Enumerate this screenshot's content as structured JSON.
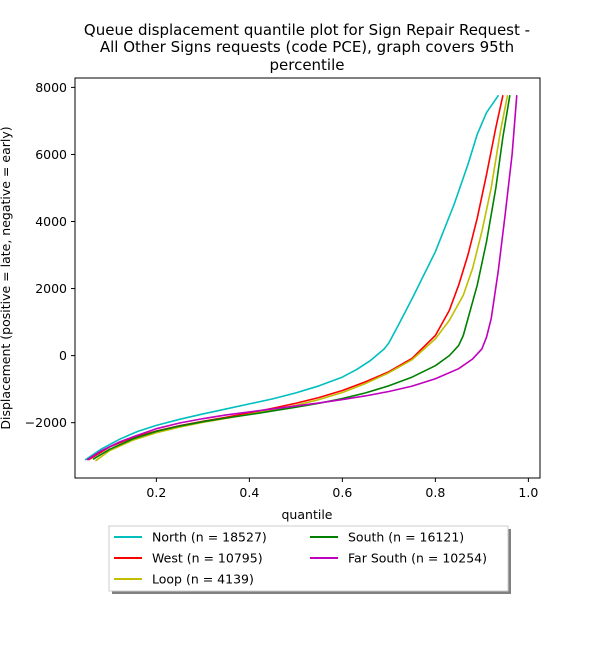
{
  "chart_data": {
    "type": "line",
    "title": [
      "Queue displacement quantile plot for Sign Repair Request -",
      "All Other Signs  requests (code PCE), graph covers 95th",
      "percentile"
    ],
    "xlabel": "quantile",
    "ylabel": "Displacement (positive = late, negative = early)",
    "xlim": [
      0.025,
      1.025
    ],
    "ylim": [
      -3650,
      8280
    ],
    "xticks": [
      0.2,
      0.4,
      0.6,
      0.8,
      1.0
    ],
    "xtick_labels": [
      "0.2",
      "0.4",
      "0.6",
      "0.8",
      "1.0"
    ],
    "yticks": [
      -2000,
      0,
      2000,
      4000,
      6000,
      8000
    ],
    "ytick_labels": [
      "−2000",
      "0",
      "2000",
      "4000",
      "6000",
      "8000"
    ],
    "grid": false,
    "legend_position": "below",
    "series": [
      {
        "name": "North (n = 18527)",
        "color": "#00bfbf",
        "x": [
          0.048,
          0.08,
          0.12,
          0.16,
          0.2,
          0.25,
          0.3,
          0.35,
          0.4,
          0.45,
          0.5,
          0.55,
          0.6,
          0.63,
          0.66,
          0.69,
          0.7,
          0.72,
          0.75,
          0.8,
          0.84,
          0.87,
          0.89,
          0.91,
          0.935
        ],
        "y": [
          -3100,
          -2800,
          -2500,
          -2260,
          -2080,
          -1900,
          -1740,
          -1590,
          -1440,
          -1290,
          -1110,
          -900,
          -640,
          -420,
          -150,
          200,
          380,
          900,
          1700,
          3100,
          4500,
          5700,
          6600,
          7250,
          7750
        ]
      },
      {
        "name": "West (n = 10795)",
        "color": "#ff0000",
        "x": [
          0.055,
          0.1,
          0.15,
          0.2,
          0.25,
          0.3,
          0.35,
          0.4,
          0.45,
          0.5,
          0.55,
          0.6,
          0.65,
          0.7,
          0.75,
          0.8,
          0.83,
          0.85,
          0.87,
          0.89,
          0.91,
          0.93,
          0.945
        ],
        "y": [
          -3100,
          -2720,
          -2440,
          -2250,
          -2090,
          -1960,
          -1840,
          -1710,
          -1570,
          -1420,
          -1250,
          -1040,
          -780,
          -480,
          -80,
          600,
          1350,
          2100,
          3000,
          4100,
          5400,
          6800,
          7750
        ]
      },
      {
        "name": "Loop (n = 4139)",
        "color": "#bfbf00",
        "x": [
          0.07,
          0.1,
          0.15,
          0.2,
          0.25,
          0.3,
          0.35,
          0.4,
          0.45,
          0.5,
          0.55,
          0.6,
          0.65,
          0.7,
          0.75,
          0.8,
          0.83,
          0.86,
          0.88,
          0.9,
          0.92,
          0.94,
          0.955
        ],
        "y": [
          -3130,
          -2830,
          -2520,
          -2300,
          -2130,
          -1990,
          -1870,
          -1750,
          -1620,
          -1480,
          -1310,
          -1100,
          -830,
          -510,
          -120,
          500,
          1050,
          1800,
          2600,
          3700,
          5000,
          6700,
          7750
        ]
      },
      {
        "name": "South (n = 16121)",
        "color": "#008000",
        "x": [
          0.065,
          0.1,
          0.15,
          0.2,
          0.25,
          0.3,
          0.35,
          0.4,
          0.45,
          0.5,
          0.55,
          0.6,
          0.65,
          0.7,
          0.75,
          0.8,
          0.83,
          0.85,
          0.86,
          0.87,
          0.89,
          0.91,
          0.93,
          0.945,
          0.96
        ],
        "y": [
          -3080,
          -2790,
          -2480,
          -2260,
          -2100,
          -1970,
          -1860,
          -1760,
          -1650,
          -1540,
          -1420,
          -1280,
          -1110,
          -900,
          -640,
          -300,
          0,
          300,
          600,
          1100,
          2100,
          3400,
          5000,
          6500,
          7750
        ]
      },
      {
        "name": "Far South (n = 10254)",
        "color": "#bf00bf",
        "x": [
          0.052,
          0.08,
          0.12,
          0.16,
          0.2,
          0.25,
          0.3,
          0.35,
          0.4,
          0.45,
          0.5,
          0.55,
          0.6,
          0.65,
          0.7,
          0.75,
          0.8,
          0.85,
          0.88,
          0.9,
          0.91,
          0.92,
          0.935,
          0.95,
          0.965,
          0.975
        ],
        "y": [
          -3100,
          -2850,
          -2580,
          -2370,
          -2180,
          -2010,
          -1880,
          -1770,
          -1680,
          -1590,
          -1500,
          -1410,
          -1310,
          -1200,
          -1070,
          -910,
          -690,
          -390,
          -100,
          200,
          550,
          1100,
          2500,
          4200,
          6000,
          7750
        ]
      }
    ]
  }
}
